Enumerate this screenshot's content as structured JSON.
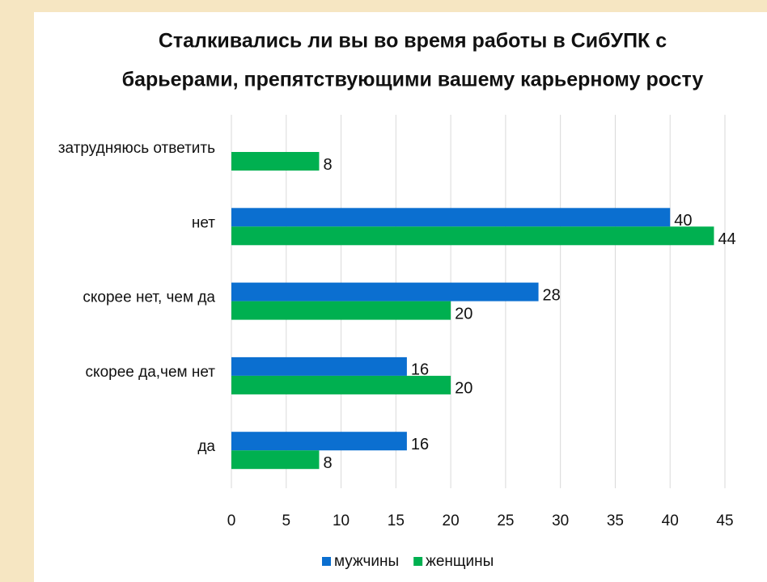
{
  "chart_data": {
    "type": "barh",
    "title": [
      "Сталкивались ли вы во время работы в СибУПК с",
      "барьерами, препятствующими вашему карьерному росту"
    ],
    "categories": [
      "затрудняюсь ответить",
      "нет",
      "скорее  нет, чем да",
      "скорее да,чем нет",
      "да"
    ],
    "series": [
      {
        "name": "мужчины",
        "color": "#0b6fd0",
        "values": [
          null,
          40,
          28,
          16,
          16
        ]
      },
      {
        "name": "женщины",
        "color": "#00b050",
        "values": [
          8,
          44,
          20,
          20,
          8
        ]
      }
    ],
    "xlim": [
      0,
      45
    ],
    "xticks": [
      0,
      5,
      10,
      15,
      20,
      25,
      30,
      35,
      40,
      45
    ],
    "grid": true,
    "legend": "bottom"
  }
}
